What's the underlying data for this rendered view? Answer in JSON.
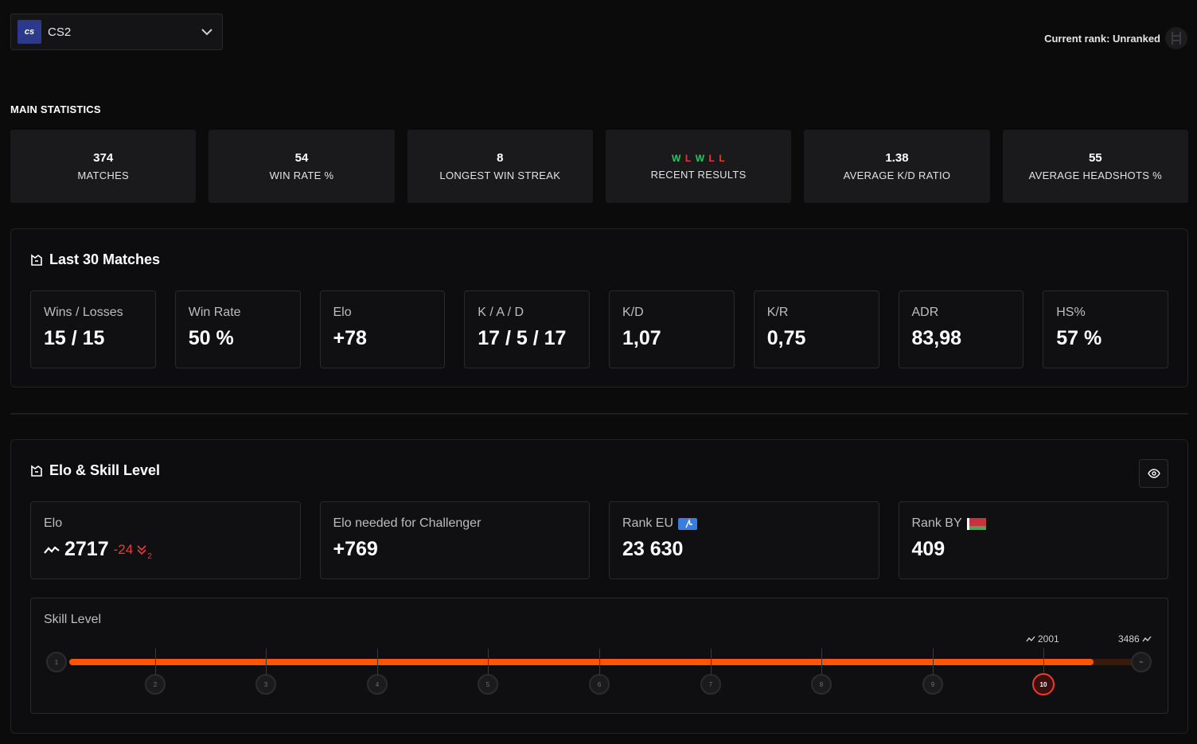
{
  "game_select": {
    "logo_text": "cs",
    "name": "CS2"
  },
  "header": {
    "current_rank": "Current rank: Unranked"
  },
  "main_statistics": {
    "title": "MAIN STATISTICS",
    "cards": [
      {
        "value": "374",
        "label": "MATCHES"
      },
      {
        "value": "54",
        "label": "WIN RATE %"
      },
      {
        "value": "8",
        "label": "LONGEST WIN STREAK"
      },
      {
        "value": "",
        "label": "RECENT RESULTS"
      },
      {
        "value": "1.38",
        "label": "AVERAGE K/D RATIO"
      },
      {
        "value": "55",
        "label": "AVERAGE HEADSHOTS %"
      }
    ],
    "recent_results": [
      "W",
      "L",
      "W",
      "L",
      "L"
    ]
  },
  "last30": {
    "title": "Last 30 Matches",
    "stats": [
      {
        "label": "Wins / Losses",
        "value": "15 / 15"
      },
      {
        "label": "Win Rate",
        "value": "50 %"
      },
      {
        "label": "Elo",
        "value": "+78"
      },
      {
        "label": "K / A / D",
        "value": "17 / 5 / 17"
      },
      {
        "label": "K/D",
        "value": "1,07"
      },
      {
        "label": "K/R",
        "value": "0,75"
      },
      {
        "label": "ADR",
        "value": "83,98"
      },
      {
        "label": "HS%",
        "value": "57 %"
      }
    ]
  },
  "elo_skill": {
    "title": "Elo & Skill Level",
    "elo": {
      "label": "Elo",
      "value": "2717",
      "delta": "-24",
      "delta_sub": "2"
    },
    "challenger": {
      "label": "Elo needed for Challenger",
      "value": "+769"
    },
    "rank_eu": {
      "label": "Rank EU",
      "value": "23 630"
    },
    "rank_by": {
      "label": "Rank BY",
      "value": "409"
    },
    "skill": {
      "label": "Skill Level",
      "levels": [
        "1",
        "2",
        "3",
        "4",
        "5",
        "6",
        "7",
        "8",
        "9",
        "10"
      ],
      "current_level": "10",
      "level10_elo": "2001",
      "max_elo": "3486",
      "progress": 0.955
    }
  },
  "colors": {
    "accent": "#ff5500",
    "win": "#2fc55f",
    "loss": "#e53935",
    "negative": "#ef3b3b"
  }
}
